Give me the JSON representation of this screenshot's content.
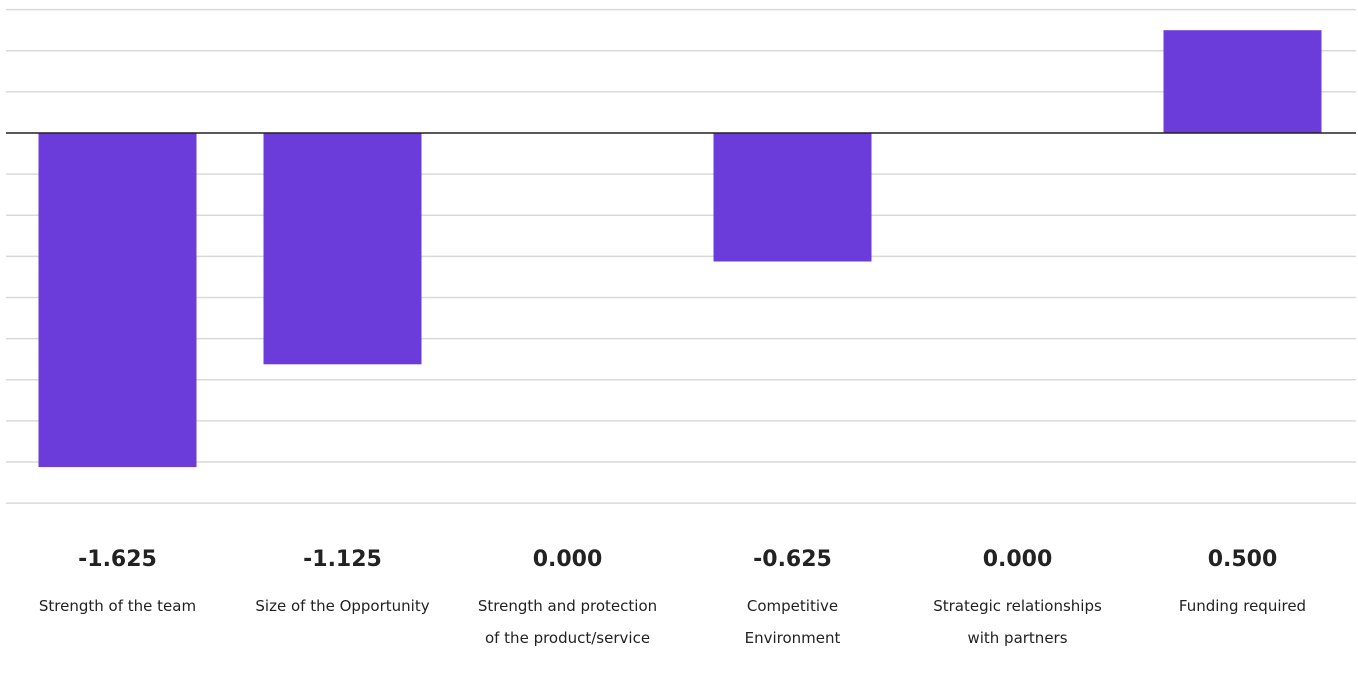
{
  "chart_data": {
    "type": "bar",
    "title": "",
    "xlabel": "",
    "ylabel": "",
    "categories": [
      [
        "Strength of the team"
      ],
      [
        "Size of the Opportunity"
      ],
      [
        "Strength and protection",
        "of the product/service"
      ],
      [
        "Competitive",
        "Environment"
      ],
      [
        "Strategic relationships",
        "with partners"
      ],
      [
        "Funding required"
      ]
    ],
    "values": [
      -1.625,
      -1.125,
      0.0,
      -0.625,
      0.0,
      0.5
    ],
    "value_labels": [
      "-1.625",
      "-1.125",
      "0.000",
      "-0.625",
      "0.000",
      "0.500"
    ],
    "ylim": [
      -1.875,
      0.625
    ],
    "grid_step": 0.2,
    "grid": true,
    "legend": "none",
    "colors": {
      "bar": "#6c3cdb",
      "grid": "#d9d9d9",
      "zero_line": "#222222",
      "text": "#222222"
    }
  }
}
